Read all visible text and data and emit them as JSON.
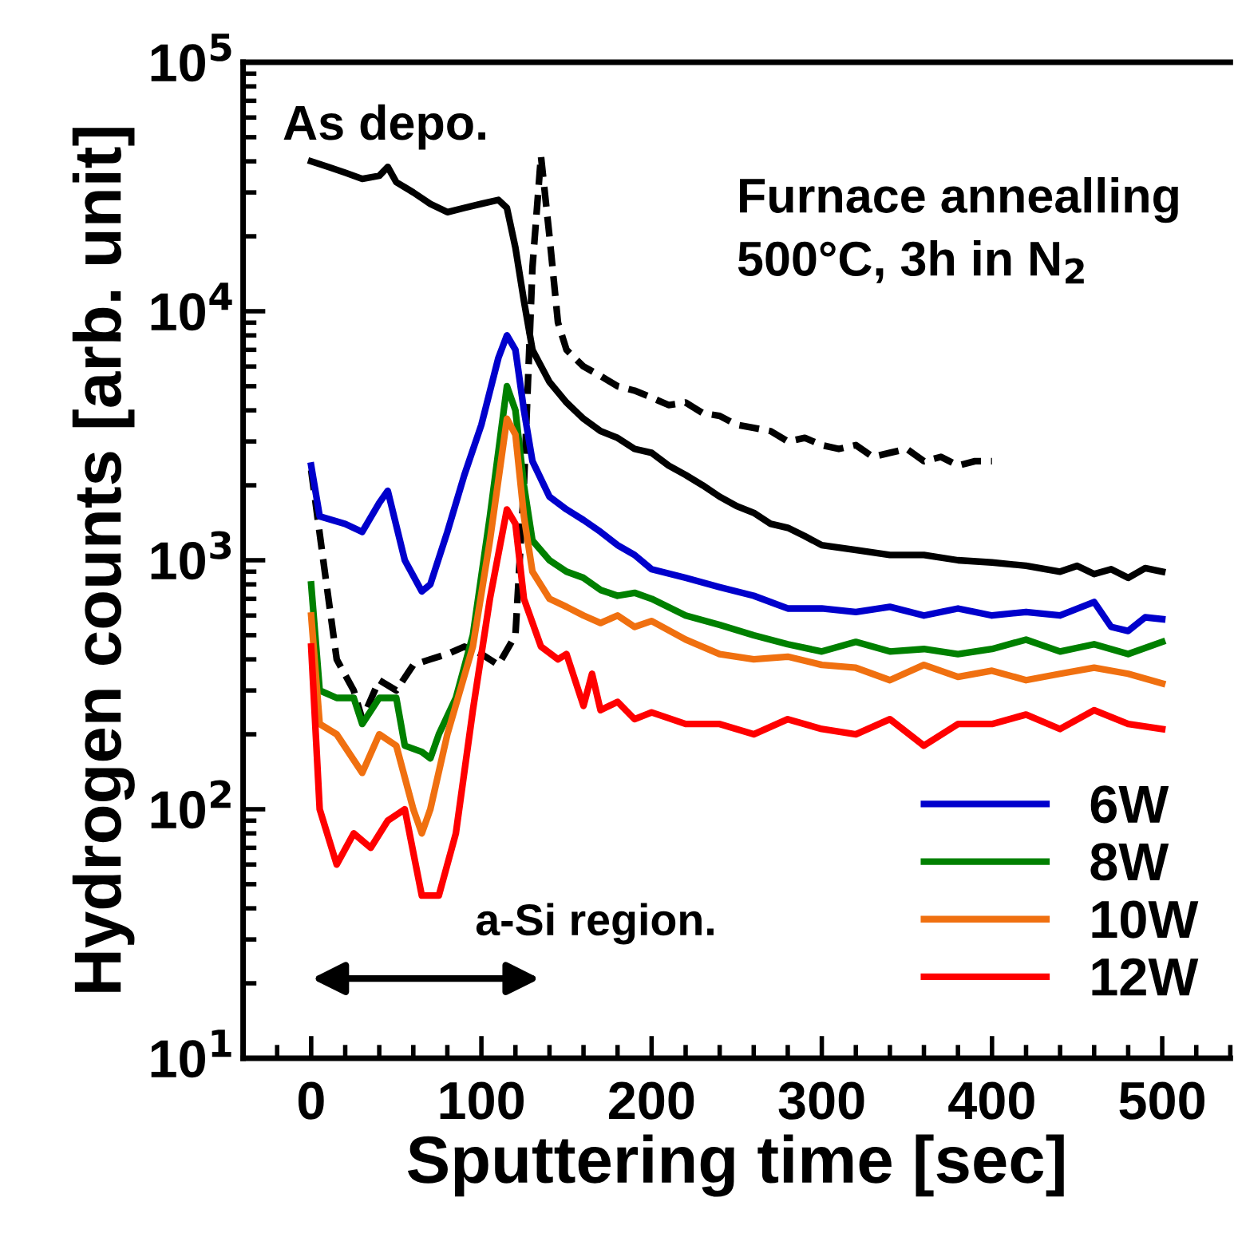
{
  "chart_data": {
    "type": "line",
    "xlabel": "Sputtering time [sec]",
    "ylabel": "Hydrogen counts [arb. unit]",
    "xlim": [
      -40,
      540
    ],
    "xticks": [
      0,
      100,
      200,
      300,
      400,
      500
    ],
    "ylim": [
      10,
      100000
    ],
    "log": "y",
    "yticks": [
      {
        "value": 10,
        "label": "10$^{1}$"
      },
      {
        "value": 100,
        "label": "10$^{2}$"
      },
      {
        "value": 1000,
        "label": "10$^{3}$"
      },
      {
        "value": 10000,
        "label": "10$^{4}$"
      },
      {
        "value": 100000,
        "label": "10$^{5}$"
      }
    ],
    "grid": false,
    "legend": "bottom right",
    "marker": "none",
    "series": [
      {
        "color": "#000000",
        "line_style": "solid",
        "x": [
          0,
          10,
          20,
          30,
          40,
          45,
          50,
          60,
          70,
          80,
          90,
          100,
          110,
          115,
          120,
          125,
          130,
          140,
          150,
          160,
          170,
          180,
          190,
          200,
          210,
          220,
          230,
          240,
          250,
          260,
          270,
          280,
          290,
          300,
          320,
          340,
          360,
          380,
          400,
          420,
          440,
          450,
          460,
          470,
          480,
          490,
          500
        ],
        "values": [
          40000,
          38000,
          36000,
          34000,
          35000,
          38000,
          33000,
          30000,
          27000,
          25000,
          26000,
          27000,
          28000,
          26000,
          18000,
          11000,
          7000,
          5200,
          4300,
          3700,
          3300,
          3100,
          2800,
          2700,
          2400,
          2200,
          2000,
          1800,
          1650,
          1550,
          1400,
          1350,
          1250,
          1150,
          1100,
          1050,
          1050,
          1000,
          980,
          950,
          900,
          950,
          880,
          920,
          850,
          930,
          900
        ]
      },
      {
        "color": "#000000",
        "line_style": "dashed",
        "x": [
          0,
          8,
          15,
          25,
          30,
          40,
          50,
          60,
          70,
          80,
          90,
          100,
          110,
          120,
          125,
          130,
          135,
          140,
          145,
          150,
          160,
          170,
          180,
          190,
          200,
          210,
          220,
          230,
          240,
          250,
          260,
          270,
          280,
          290,
          300,
          310,
          320,
          330,
          340,
          350,
          360,
          370,
          380,
          390,
          400
        ],
        "values": [
          2300,
          900,
          400,
          300,
          230,
          330,
          300,
          380,
          400,
          420,
          450,
          420,
          380,
          500,
          2000,
          15000,
          42000,
          20000,
          9000,
          7000,
          6000,
          5500,
          5000,
          4800,
          4500,
          4200,
          4300,
          3900,
          3800,
          3500,
          3400,
          3300,
          3000,
          3100,
          2900,
          2800,
          2900,
          2600,
          2700,
          2800,
          2500,
          2600,
          2400,
          2500,
          2500
        ]
      },
      {
        "name": "6W",
        "color": "#0000cc",
        "line_style": "solid",
        "x": [
          0,
          5,
          20,
          30,
          40,
          45,
          55,
          65,
          70,
          80,
          90,
          100,
          110,
          115,
          120,
          125,
          130,
          140,
          150,
          160,
          170,
          180,
          190,
          200,
          220,
          240,
          260,
          280,
          300,
          320,
          340,
          360,
          380,
          400,
          420,
          440,
          460,
          470,
          480,
          490,
          500
        ],
        "values": [
          2400,
          1500,
          1400,
          1300,
          1700,
          1900,
          1000,
          750,
          800,
          1300,
          2200,
          3500,
          6500,
          8000,
          7000,
          4000,
          2500,
          1800,
          1600,
          1450,
          1300,
          1150,
          1050,
          920,
          850,
          780,
          720,
          640,
          640,
          620,
          650,
          600,
          640,
          600,
          620,
          600,
          680,
          540,
          520,
          590,
          580
        ]
      },
      {
        "name": "8W",
        "color": "#008000",
        "line_style": "solid",
        "x": [
          0,
          5,
          15,
          25,
          30,
          40,
          50,
          55,
          65,
          70,
          75,
          85,
          95,
          105,
          115,
          120,
          125,
          130,
          140,
          150,
          160,
          170,
          180,
          190,
          200,
          220,
          240,
          260,
          280,
          300,
          320,
          340,
          360,
          380,
          400,
          420,
          440,
          460,
          480,
          500
        ],
        "values": [
          800,
          300,
          280,
          280,
          220,
          280,
          280,
          180,
          170,
          160,
          200,
          280,
          500,
          1500,
          5000,
          4000,
          2000,
          1200,
          1000,
          900,
          850,
          760,
          720,
          740,
          700,
          600,
          550,
          500,
          460,
          430,
          470,
          430,
          440,
          420,
          440,
          480,
          430,
          460,
          420,
          470
        ]
      },
      {
        "name": "10W",
        "color": "#f07010",
        "line_style": "solid",
        "x": [
          0,
          5,
          15,
          30,
          40,
          50,
          60,
          65,
          70,
          80,
          95,
          105,
          115,
          120,
          125,
          130,
          140,
          150,
          160,
          170,
          180,
          190,
          200,
          220,
          240,
          260,
          280,
          300,
          320,
          340,
          360,
          380,
          400,
          420,
          440,
          460,
          480,
          500
        ],
        "values": [
          600,
          220,
          200,
          140,
          200,
          180,
          100,
          80,
          100,
          200,
          450,
          1200,
          3700,
          3200,
          1500,
          900,
          700,
          650,
          600,
          560,
          600,
          540,
          570,
          480,
          420,
          400,
          410,
          380,
          370,
          330,
          380,
          340,
          360,
          330,
          350,
          370,
          350,
          320
        ]
      },
      {
        "name": "12W",
        "color": "#ff0000",
        "line_style": "solid",
        "x": [
          0,
          5,
          15,
          25,
          35,
          45,
          55,
          65,
          75,
          85,
          95,
          105,
          115,
          120,
          125,
          135,
          145,
          150,
          160,
          165,
          170,
          180,
          190,
          200,
          220,
          240,
          260,
          280,
          300,
          320,
          340,
          360,
          380,
          400,
          420,
          440,
          460,
          480,
          500
        ],
        "values": [
          450,
          100,
          60,
          80,
          70,
          90,
          100,
          45,
          45,
          80,
          250,
          700,
          1600,
          1400,
          700,
          450,
          400,
          420,
          260,
          350,
          250,
          270,
          230,
          245,
          220,
          220,
          200,
          230,
          210,
          200,
          230,
          180,
          220,
          220,
          240,
          210,
          250,
          220,
          210
        ]
      }
    ],
    "annotations": [
      "As depo.",
      "Furnace annealling\n500°C, 3h in N$_{2}$",
      "a-Si region."
    ]
  }
}
